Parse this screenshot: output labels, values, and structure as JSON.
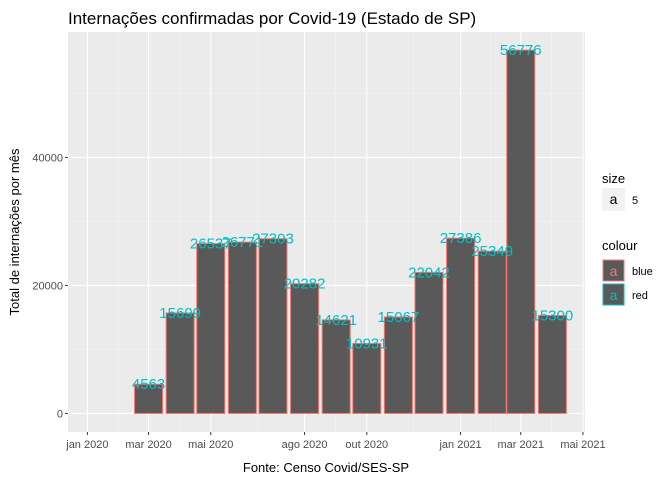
{
  "chart_data": {
    "type": "bar",
    "title": "Internações confirmadas por Covid-19 (Estado de SP)",
    "xlabel": "Fonte: Censo Covid/SES-SP",
    "ylabel": "Total de internações por mês",
    "x_dates": [
      "2020-03-01",
      "2020-04-01",
      "2020-05-01",
      "2020-06-01",
      "2020-07-01",
      "2020-08-01",
      "2020-09-01",
      "2020-10-01",
      "2020-11-01",
      "2020-12-01",
      "2021-01-01",
      "2021-02-01",
      "2021-03-01",
      "2021-04-01"
    ],
    "values": [
      4563,
      15699,
      26537,
      26771,
      27303,
      20282,
      14621,
      10931,
      15067,
      22042,
      27386,
      25349,
      56776,
      15300
    ],
    "data_labels": [
      "4563",
      "15699",
      "26537",
      "26771",
      "27303",
      "20282",
      "14621",
      "10931",
      "15067",
      "22042",
      "27386",
      "25349",
      "56776",
      "15300"
    ],
    "xlim": [
      "2019-12-13",
      "2021-05-03"
    ],
    "ylim": [
      -2900,
      59600
    ],
    "x_ticks": [
      {
        "date": "2020-01-01",
        "label": "jan 2020"
      },
      {
        "date": "2020-03-01",
        "label": "mar 2020"
      },
      {
        "date": "2020-05-01",
        "label": "mai 2020"
      },
      {
        "date": "2020-08-01",
        "label": "ago 2020"
      },
      {
        "date": "2020-10-01",
        "label": "out 2020"
      },
      {
        "date": "2021-01-01",
        "label": "jan 2021"
      },
      {
        "date": "2021-03-01",
        "label": "mar 2021"
      },
      {
        "date": "2021-05-01",
        "label": "mai 2021"
      }
    ],
    "y_ticks": [
      {
        "value": 0,
        "label": "0"
      },
      {
        "value": 20000,
        "label": "20000"
      },
      {
        "value": 40000,
        "label": "40000"
      }
    ],
    "grid": true,
    "legend_placement": "right",
    "legends": {
      "size": {
        "title": "size",
        "keys": [
          {
            "glyph": "a",
            "label": "5"
          }
        ]
      },
      "colour": {
        "title": "colour",
        "keys": [
          {
            "glyph": "a",
            "label": "blue",
            "color": "#F8766D"
          },
          {
            "glyph": "a",
            "label": "red",
            "color": "#00BFC4"
          }
        ]
      }
    },
    "colors": {
      "bar_fill": "#595959",
      "bar_outline": "#F8766D",
      "label_color": "#00BFC4",
      "panel_bg": "#EBEBEB",
      "grid_major": "#FFFFFF",
      "grid_minor": "#F5F5F5"
    }
  }
}
